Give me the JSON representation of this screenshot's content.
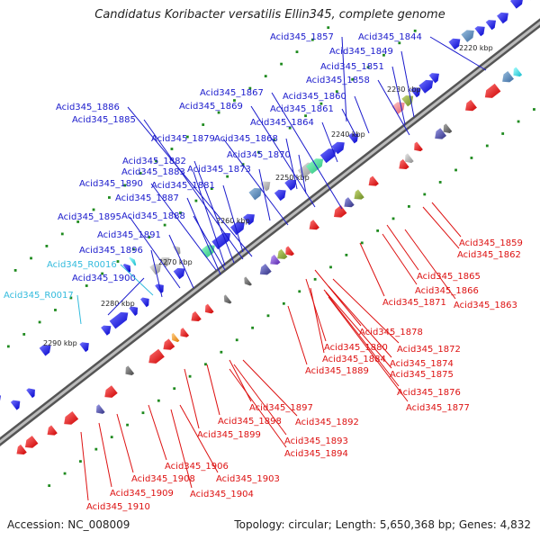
{
  "title": "Candidatus Koribacter versatilis Ellin345, complete genome",
  "footer": {
    "accession": "Accession: NC_008009",
    "topology": "Topology: circular; Length: 5,650,368 bp; Genes: 4,832"
  },
  "colors": {
    "forward_label": "#1a1acc",
    "reverse_label": "#dd1111",
    "rna_label": "#33bbdd",
    "backbone": "#777777",
    "tick_dot": "#1e8a1e"
  },
  "kbp_ticks": [
    "2220 kbp",
    "2230 kbp",
    "2240 kbp",
    "2250 kbp",
    "2260 kbp",
    "2270 kbp",
    "2280 kbp",
    "2290 kbp"
  ],
  "forward_labels": [
    "Acid345_1857",
    "Acid345_1844",
    "Acid345_1849",
    "Acid345_1851",
    "Acid345_1858",
    "Acid345_1867",
    "Acid345_1860",
    "Acid345_1886",
    "Acid345_1869",
    "Acid345_1861",
    "Acid345_1885",
    "Acid345_1864",
    "Acid345_1879",
    "Acid345_1868",
    "Acid345_1870",
    "Acid345_1882",
    "Acid345_1873",
    "Acid345_1883",
    "Acid345_1890",
    "Acid345_1881",
    "Acid345_1887",
    "Acid345_1895",
    "Acid345_1888",
    "Acid345_1891",
    "Acid345_1896",
    "Acid345_1900"
  ],
  "rna_labels": [
    "Acid345_R0016",
    "Acid345_R0017"
  ],
  "reverse_labels": [
    "Acid345_1859",
    "Acid345_1862",
    "Acid345_1865",
    "Acid345_1866",
    "Acid345_1871",
    "Acid345_1863",
    "Acid345_1878",
    "Acid345_1880",
    "Acid345_1872",
    "Acid345_1884",
    "Acid345_1874",
    "Acid345_1889",
    "Acid345_1875",
    "Acid345_1876",
    "Acid345_1877",
    "Acid345_1897",
    "Acid345_1898",
    "Acid345_1892",
    "Acid345_1899",
    "Acid345_1893",
    "Acid345_1894",
    "Acid345_1906",
    "Acid345_1903",
    "Acid345_1908",
    "Acid345_1904",
    "Acid345_1909",
    "Acid345_1910"
  ]
}
